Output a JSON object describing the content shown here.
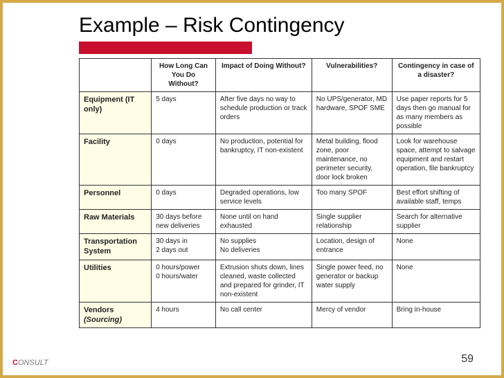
{
  "slide": {
    "title": "Example – Risk Contingency",
    "page_number": "59",
    "logo_text": "ONSULT",
    "accent_red": "#c8102e",
    "frame_color": "#d4a947",
    "row_head_bg": "#fffde6",
    "border_color": "#333333"
  },
  "table": {
    "columns": [
      "",
      "How Long Can You Do Without?",
      "Impact of Doing Without?",
      "Vulnerabilities?",
      "Contingency in case of a disaster?"
    ],
    "rows": [
      {
        "head": "Equipment (IT only)",
        "c1": "5 days",
        "c2": "After five days no way to schedule production or track orders",
        "c3": "No UPS/generator, MD hardware, SPOF SME",
        "c4": "Use paper reports for 5 days then go manual for as many members as possible"
      },
      {
        "head": "Facility",
        "c1": "0 days",
        "c2": "No production, potential for bankruptcy, IT non-existent",
        "c3": "Metal building, flood zone, poor maintenance, no perimeter security, door lock broken",
        "c4": "Look for warehouse space, attempt to salvage equipment and restart operation, file bankruptcy"
      },
      {
        "head": "Personnel",
        "c1": "0 days",
        "c2": "Degraded operations, low service levels",
        "c3": "Too many SPOF",
        "c4": "Best effort shifting of available staff, temps"
      },
      {
        "head": "Raw Materials",
        "c1": "30 days before new deliveries",
        "c2": "None until on hand exhausted",
        "c3": "Single supplier relationship",
        "c4": "Search for alternative supplier"
      },
      {
        "head": "Transportation System",
        "c1": "30 days in\n2 days out",
        "c2": "No supplies\nNo deliveries",
        "c3": "Location, design of entrance",
        "c4": "None"
      },
      {
        "head": "Utilities",
        "c1": "0 hours/power\n0 hours/water",
        "c2": "Extrusion shuts down, lines cleaned, waste collected and prepared for grinder, IT non-existent",
        "c3": "Single power feed, no generator or backup water supply",
        "c4": "None"
      },
      {
        "head_html": "Vendors <span class=\"italic\">(Sourcing)</span>",
        "head": "Vendors (Sourcing)",
        "c1": "4 hours",
        "c2": "No call center",
        "c3": "Mercy of vendor",
        "c4": "Bring in-house"
      }
    ]
  }
}
